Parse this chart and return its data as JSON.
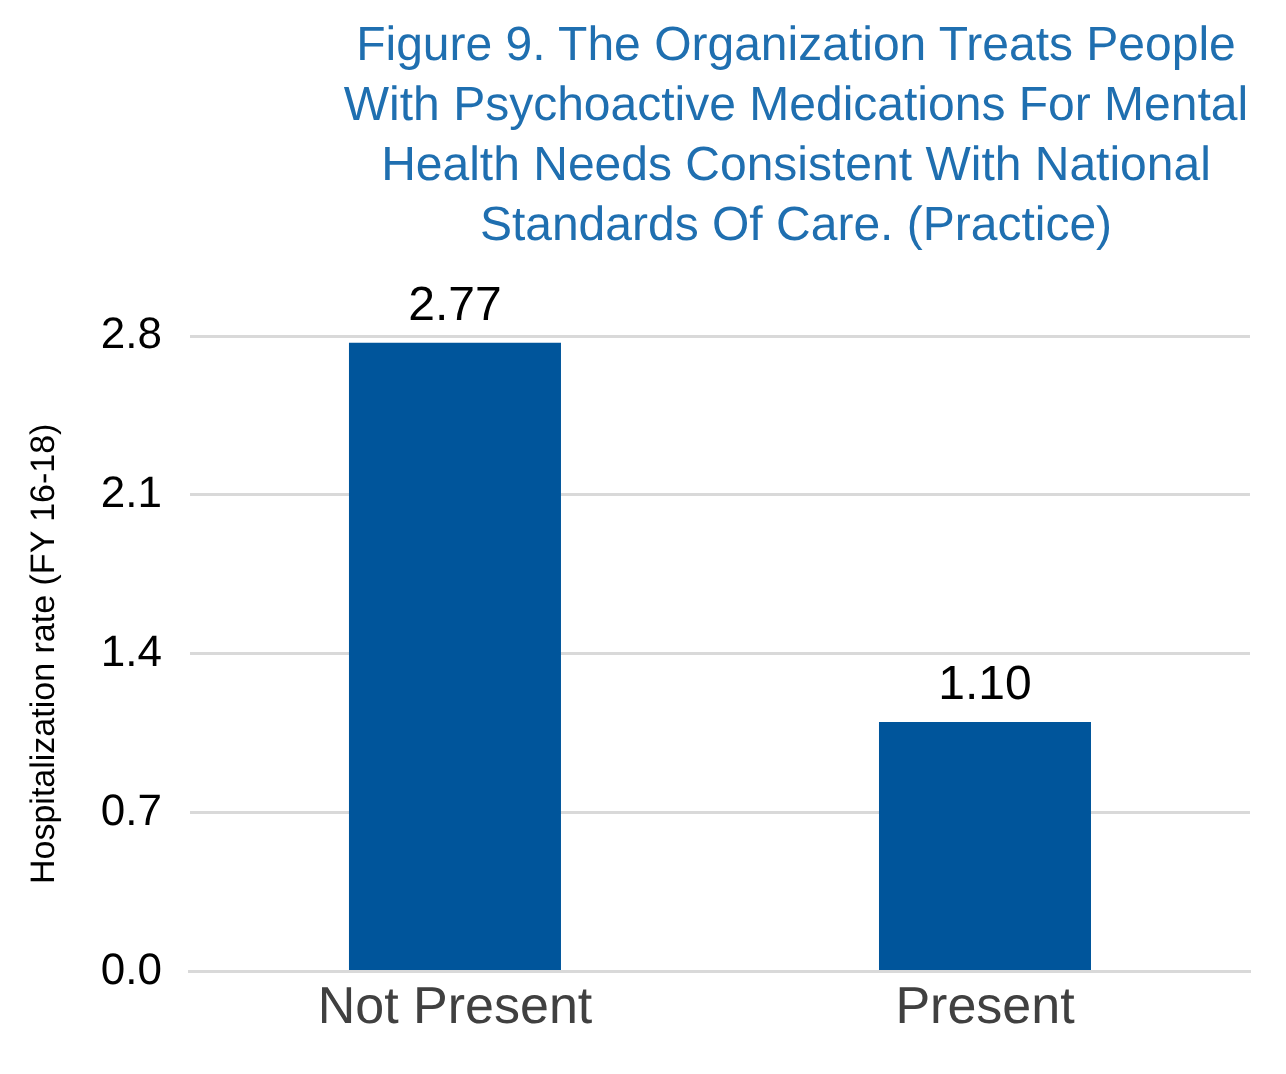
{
  "chart_data": {
    "type": "bar",
    "title": "Figure 9. The Organization Treats People With Psychoactive Medications For Mental Health Needs Consistent With National Standards Of Care. (Practice)",
    "ylabel": "Hospitalization rate (FY 16-18)",
    "categories": [
      "Not Present",
      "Present"
    ],
    "values": [
      2.77,
      1.1
    ],
    "value_labels": [
      "2.77",
      "1.10"
    ],
    "color": "#00559b",
    "ylim": [
      0,
      2.8
    ],
    "yticks": [
      {
        "value": 0,
        "label": "0.0"
      },
      0.7,
      1.4,
      2.1,
      2.8
    ],
    "grid": "y",
    "legend": false
  }
}
